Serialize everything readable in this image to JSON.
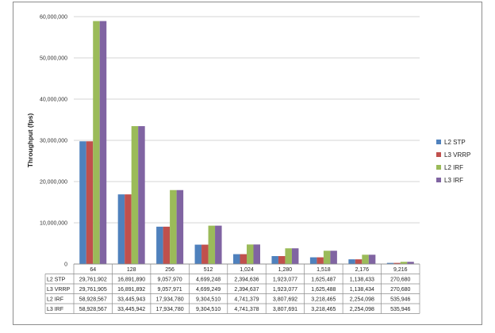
{
  "chart_data": {
    "type": "bar",
    "title": "",
    "xlabel": "",
    "ylabel": "Throughput (fps)",
    "ylim": [
      0,
      60000000
    ],
    "yticks": [
      0,
      10000000,
      20000000,
      30000000,
      40000000,
      50000000,
      60000000
    ],
    "ytick_labels": [
      "0",
      "10,000,000",
      "20,000,000",
      "30,000,000",
      "40,000,000",
      "50,000,000",
      "60,000,000"
    ],
    "grid": true,
    "legend_position": "right",
    "categories": [
      "64",
      "128",
      "256",
      "512",
      "1,024",
      "1,280",
      "1,518",
      "2,176",
      "9,216"
    ],
    "series": [
      {
        "name": "L2 STP",
        "color": "#4f81bd",
        "values": [
          29761902,
          16891890,
          9057970,
          4699248,
          2394636,
          1923077,
          1625487,
          1138433,
          270680
        ],
        "labels": [
          "29,761,902",
          "16,891,890",
          "9,057,970",
          "4,699,248",
          "2,394,636",
          "1,923,077",
          "1,625,487",
          "1,138,433",
          "270,680"
        ]
      },
      {
        "name": "L3 VRRP",
        "color": "#c0504d",
        "values": [
          29761905,
          16891892,
          9057971,
          4699249,
          2394637,
          1923077,
          1625488,
          1138434,
          270680
        ],
        "labels": [
          "29,761,905",
          "16,891,892",
          "9,057,971",
          "4,699,249",
          "2,394,637",
          "1,923,077",
          "1,625,488",
          "1,138,434",
          "270,680"
        ]
      },
      {
        "name": "L2 IRF",
        "color": "#9bbb59",
        "values": [
          58928567,
          33445943,
          17934780,
          9304510,
          4741379,
          3807692,
          3218465,
          2254098,
          535946
        ],
        "labels": [
          "58,928,567",
          "33,445,943",
          "17,934,780",
          "9,304,510",
          "4,741,379",
          "3,807,692",
          "3,218,465",
          "2,254,098",
          "535,946"
        ]
      },
      {
        "name": "L3 IRF",
        "color": "#8064a2",
        "values": [
          58928567,
          33445942,
          17934780,
          9304510,
          4741378,
          3807691,
          3218465,
          2254098,
          535946
        ],
        "labels": [
          "58,928,567",
          "33,445,942",
          "17,934,780",
          "9,304,510",
          "4,741,378",
          "3,807,691",
          "3,218,465",
          "2,254,098",
          "535,946"
        ]
      }
    ]
  }
}
